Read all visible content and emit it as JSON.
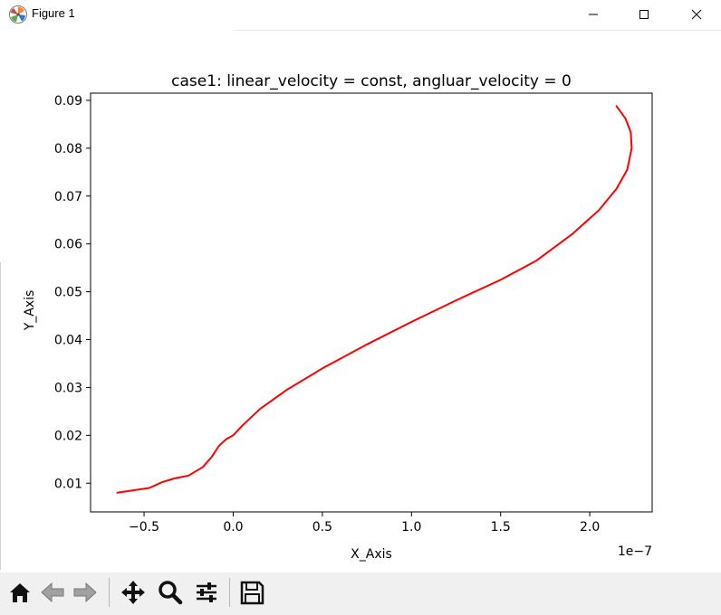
{
  "window": {
    "title": "Figure 1",
    "controls": [
      "minimize",
      "maximize",
      "close"
    ]
  },
  "toolbar": {
    "buttons": [
      {
        "name": "home",
        "icon": "home-icon"
      },
      {
        "name": "back",
        "icon": "back-arrow-icon"
      },
      {
        "name": "forward",
        "icon": "forward-arrow-icon"
      },
      {
        "name": "pan",
        "icon": "move-icon"
      },
      {
        "name": "zoom",
        "icon": "magnifier-icon"
      },
      {
        "name": "configure-subplots",
        "icon": "sliders-icon"
      },
      {
        "name": "save",
        "icon": "floppy-disk-icon"
      }
    ],
    "coordinates": ""
  },
  "chart_data": {
    "type": "line",
    "title": "case1: linear_velocity = const, angluar_velocity = 0",
    "xlabel": "X_Axis",
    "ylabel": "Y_Axis",
    "x_offset_label": "1e−7",
    "xlim": [
      -0.8,
      2.35
    ],
    "ylim": [
      0.004,
      0.0915
    ],
    "xticks": [
      -0.5,
      0.0,
      0.5,
      1.0,
      1.5,
      2.0
    ],
    "xtick_labels": [
      "−0.5",
      "0.0",
      "0.5",
      "1.0",
      "1.5",
      "2.0"
    ],
    "yticks": [
      0.01,
      0.02,
      0.03,
      0.04,
      0.05,
      0.06,
      0.07,
      0.08,
      0.09
    ],
    "ytick_labels": [
      "0.01",
      "0.02",
      "0.03",
      "0.04",
      "0.05",
      "0.06",
      "0.07",
      "0.08",
      "0.09"
    ],
    "grid": false,
    "series": [
      {
        "color": "#ff0000",
        "x": [
          -0.65,
          -0.47,
          -0.4,
          -0.33,
          -0.25,
          -0.17,
          -0.12,
          -0.08,
          -0.04,
          0.0,
          0.05,
          0.15,
          0.3,
          0.5,
          0.75,
          1.0,
          1.25,
          1.5,
          1.7,
          1.9,
          2.05,
          2.15,
          2.21,
          2.235,
          2.23,
          2.2,
          2.15
        ],
        "y": [
          0.008,
          0.009,
          0.0102,
          0.011,
          0.0116,
          0.0134,
          0.0155,
          0.0178,
          0.0192,
          0.02,
          0.022,
          0.0255,
          0.0295,
          0.034,
          0.039,
          0.0437,
          0.0482,
          0.0525,
          0.0565,
          0.062,
          0.067,
          0.0715,
          0.0755,
          0.08,
          0.0833,
          0.0862,
          0.0888
        ]
      }
    ]
  }
}
